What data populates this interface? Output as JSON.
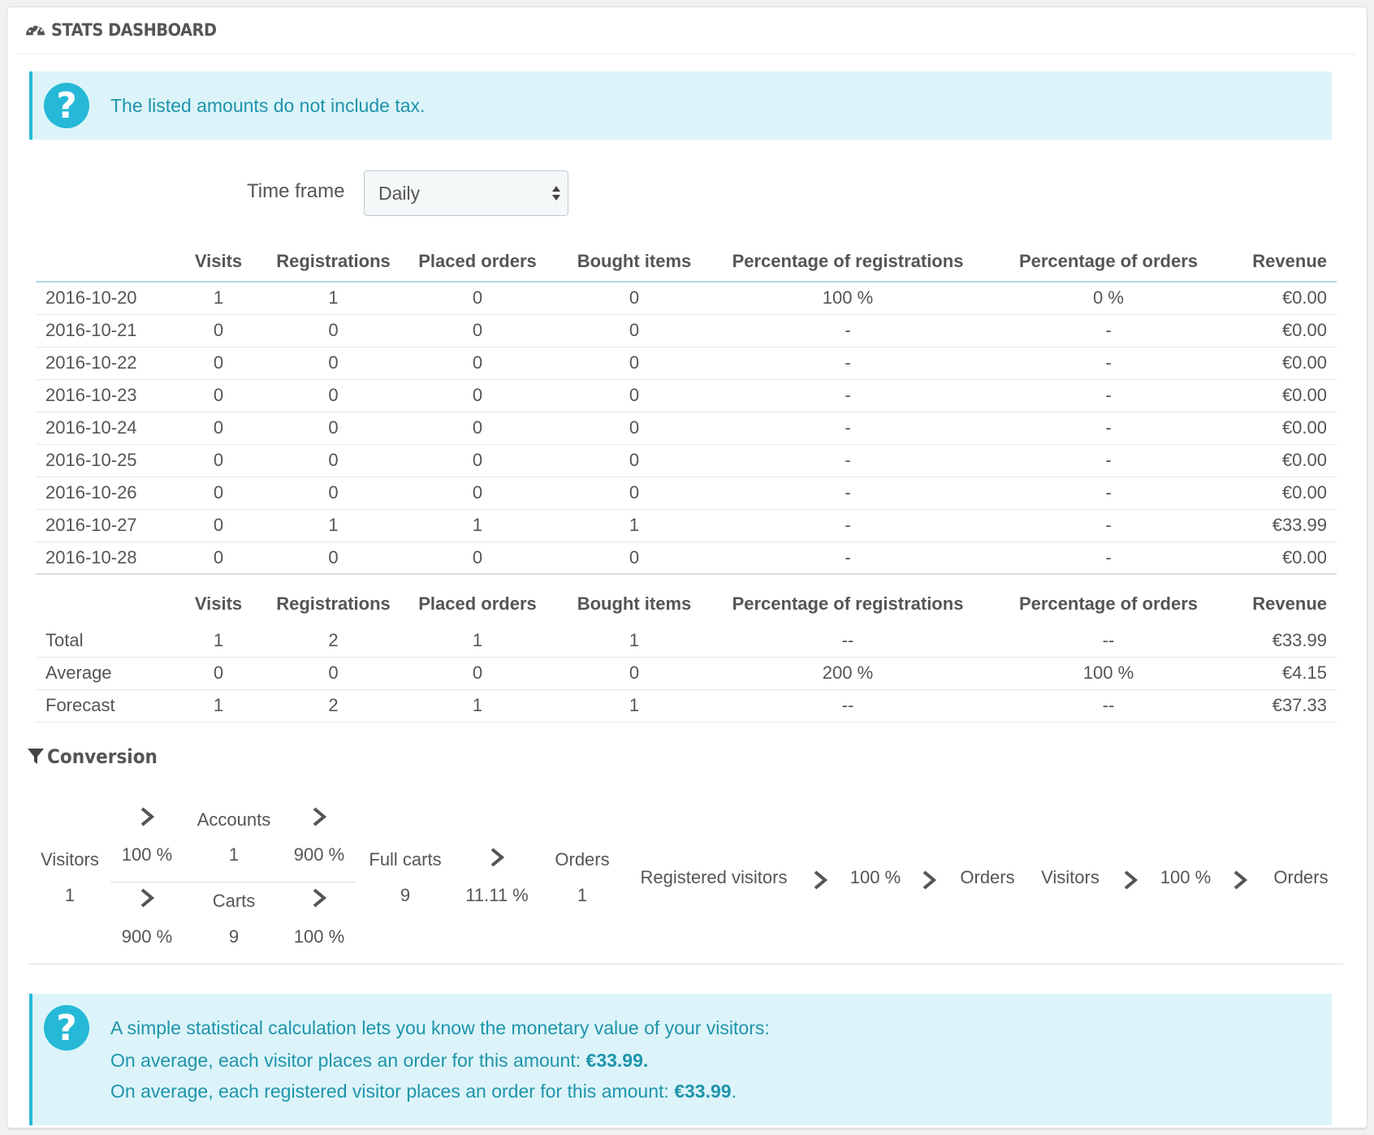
{
  "header": {
    "title": "STATS DASHBOARD",
    "icon": "dashboard-icon"
  },
  "tax_alert": {
    "text": "The listed amounts do not include tax."
  },
  "timeframe": {
    "label": "Time frame",
    "selected": "Daily"
  },
  "table": {
    "headers": [
      "",
      "Visits",
      "Registrations",
      "Placed orders",
      "Bought items",
      "Percentage of registrations",
      "Percentage of orders",
      "Revenue"
    ],
    "rows": [
      [
        "2016-10-20",
        "1",
        "1",
        "0",
        "0",
        "100 %",
        "0 %",
        "€0.00"
      ],
      [
        "2016-10-21",
        "0",
        "0",
        "0",
        "0",
        "-",
        "-",
        "€0.00"
      ],
      [
        "2016-10-22",
        "0",
        "0",
        "0",
        "0",
        "-",
        "-",
        "€0.00"
      ],
      [
        "2016-10-23",
        "0",
        "0",
        "0",
        "0",
        "-",
        "-",
        "€0.00"
      ],
      [
        "2016-10-24",
        "0",
        "0",
        "0",
        "0",
        "-",
        "-",
        "€0.00"
      ],
      [
        "2016-10-25",
        "0",
        "0",
        "0",
        "0",
        "-",
        "-",
        "€0.00"
      ],
      [
        "2016-10-26",
        "0",
        "0",
        "0",
        "0",
        "-",
        "-",
        "€0.00"
      ],
      [
        "2016-10-27",
        "0",
        "1",
        "1",
        "1",
        "-",
        "-",
        "€33.99"
      ],
      [
        "2016-10-28",
        "0",
        "0",
        "0",
        "0",
        "-",
        "-",
        "€0.00"
      ]
    ]
  },
  "summary": {
    "headers": [
      "",
      "Visits",
      "Registrations",
      "Placed orders",
      "Bought items",
      "Percentage of registrations",
      "Percentage of orders",
      "Revenue"
    ],
    "rows": [
      [
        "Total",
        "1",
        "2",
        "1",
        "1",
        "--",
        "--",
        "€33.99"
      ],
      [
        "Average",
        "0",
        "0",
        "0",
        "0",
        "200 %",
        "100 %",
        "€4.15"
      ],
      [
        "Forecast",
        "1",
        "2",
        "1",
        "1",
        "--",
        "--",
        "€37.33"
      ]
    ]
  },
  "conversion": {
    "title": "Conversion",
    "visitors_label": "Visitors",
    "visitors_value": "1",
    "to_accounts_pct": "100 %",
    "accounts_label": "Accounts",
    "accounts_value": "1",
    "accounts_to_carts_pct": "900 %",
    "to_carts_pct": "900 %",
    "carts_label": "Carts",
    "carts_value": "9",
    "carts_to_full_pct": "100 %",
    "full_carts_label": "Full carts",
    "full_carts_value": "9",
    "full_to_orders_pct": "11.11 %",
    "orders_label": "Orders",
    "orders_value": "1",
    "registered_visitors_label": "Registered visitors",
    "registered_to_orders_pct": "100 %",
    "orders_label_2": "Orders",
    "visitors_label_2": "Visitors",
    "visitors_to_orders_pct": "100 %",
    "orders_label_3": "Orders"
  },
  "value_alert": {
    "line1": "A simple statistical calculation lets you know the monetary value of your visitors:",
    "line2_prefix": "On average, each visitor places an order for this amount: ",
    "line2_value": "€33.99.",
    "line3_prefix": "On average, each registered visitor places an order for this amount: ",
    "line3_value": "€33.99",
    "line3_suffix": "."
  },
  "colors": {
    "accent": "#25b9d7",
    "alert_bg": "#dcf4f9",
    "alert_text": "#1e94ab"
  }
}
